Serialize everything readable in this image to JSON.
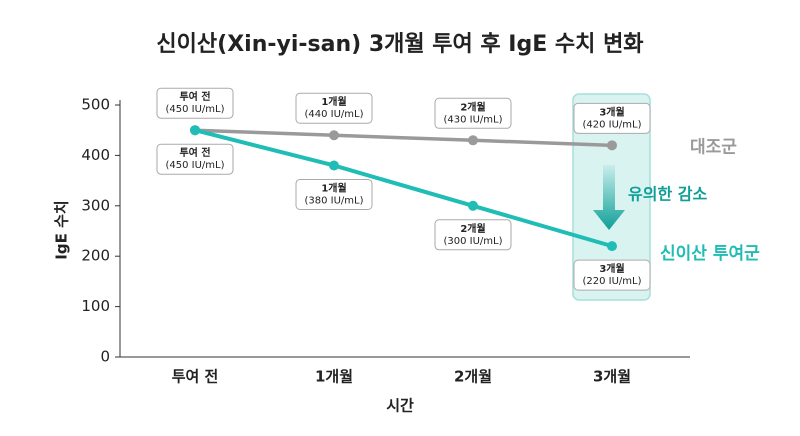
{
  "chart_data": {
    "type": "line",
    "title": "신이산(Xin-yi-san) 3개월 투여 후 IgE 수치 변화",
    "x_label": "시간",
    "y_label": "IgE 수치",
    "annotation": "유의한 감소",
    "categories": [
      "투여 전",
      "1개월",
      "2개월",
      "3개월"
    ],
    "series": [
      {
        "name": "대조군",
        "color": "#9a9a9a",
        "values": [
          450,
          440,
          430,
          420
        ],
        "value_labels": [
          "(450 IU/mL)",
          "(440 IU/mL)",
          "(430 IU/mL)",
          "(420 IU/mL)"
        ]
      },
      {
        "name": "신이산 투여군",
        "color": "#1fbdb6",
        "values": [
          450,
          380,
          300,
          220
        ],
        "value_labels": [
          "(450 IU/mL)",
          "(380 IU/mL)",
          "(300 IU/mL)",
          "(220 IU/mL)"
        ]
      }
    ],
    "ylim": [
      0,
      500
    ],
    "yticks": [
      0,
      100,
      200,
      300,
      400,
      500
    ],
    "grid": false
  }
}
